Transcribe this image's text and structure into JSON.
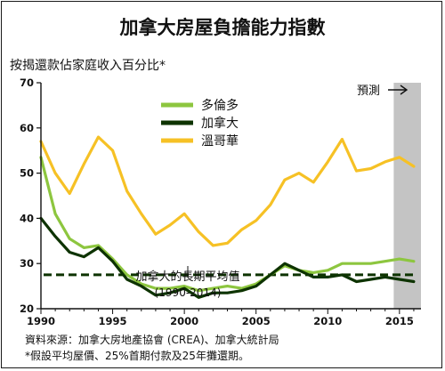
{
  "chart_data": {
    "type": "line",
    "title": "加拿大房屋負擔能力指數",
    "ylabel": "按揭還款佔家庭收入百分比*",
    "xlim": [
      1990,
      2016.5
    ],
    "ylim": [
      20,
      70
    ],
    "x_ticks": [
      "1990",
      "1995",
      "2000",
      "2005",
      "2010",
      "2015"
    ],
    "y_ticks": [
      "20",
      "30",
      "40",
      "50",
      "60",
      "70"
    ],
    "x": [
      1990,
      1991,
      1992,
      1993,
      1994,
      1995,
      1996,
      1997,
      1998,
      1999,
      2000,
      2001,
      2002,
      2003,
      2004,
      2005,
      2006,
      2007,
      2008,
      2009,
      2010,
      2011,
      2012,
      2013,
      2014,
      2015,
      2016
    ],
    "series": [
      {
        "name": "多倫多",
        "color": "#8dc63f",
        "values": [
          53.5,
          41,
          35.5,
          33.5,
          34,
          31,
          27.5,
          25.5,
          24.5,
          24.5,
          25,
          24,
          24.5,
          25,
          24.5,
          25.5,
          27.5,
          29.5,
          28.5,
          28,
          28.5,
          30,
          30,
          30,
          30.5,
          31,
          30.5
        ]
      },
      {
        "name": "加拿大",
        "color": "#0d3300",
        "values": [
          40,
          36,
          32.5,
          31.5,
          33.5,
          30.5,
          26.5,
          25,
          23,
          23.5,
          24.5,
          22.5,
          23.5,
          23.5,
          24,
          25,
          27.5,
          30,
          28.5,
          27,
          27,
          27.5,
          26,
          26.5,
          27,
          26.5,
          26
        ]
      },
      {
        "name": "溫哥華",
        "color": "#f6c125",
        "values": [
          57,
          50,
          45.5,
          52,
          58,
          55,
          46,
          41,
          36.5,
          38.5,
          41,
          37,
          34,
          34.5,
          37.5,
          39.5,
          43,
          48.5,
          50,
          48,
          52.5,
          57.5,
          50.5,
          51,
          52.5,
          53.5,
          51.5
        ]
      }
    ],
    "average_line": {
      "value": 27.5,
      "color": "#0d3300",
      "label": "加拿大的長期平均值",
      "sublabel": "(1990-2014)"
    },
    "forecast": {
      "from": 2014.6,
      "to": 2016.5,
      "label": "預測",
      "color": "#c4c4c4"
    },
    "legend": "top-left",
    "grid": false
  },
  "footer": {
    "source": "資料來源：加拿大房地產協會 (CREA)、加拿大統計局",
    "note": "*假設平均屋價、25%首期付款及25年攤還期。"
  }
}
